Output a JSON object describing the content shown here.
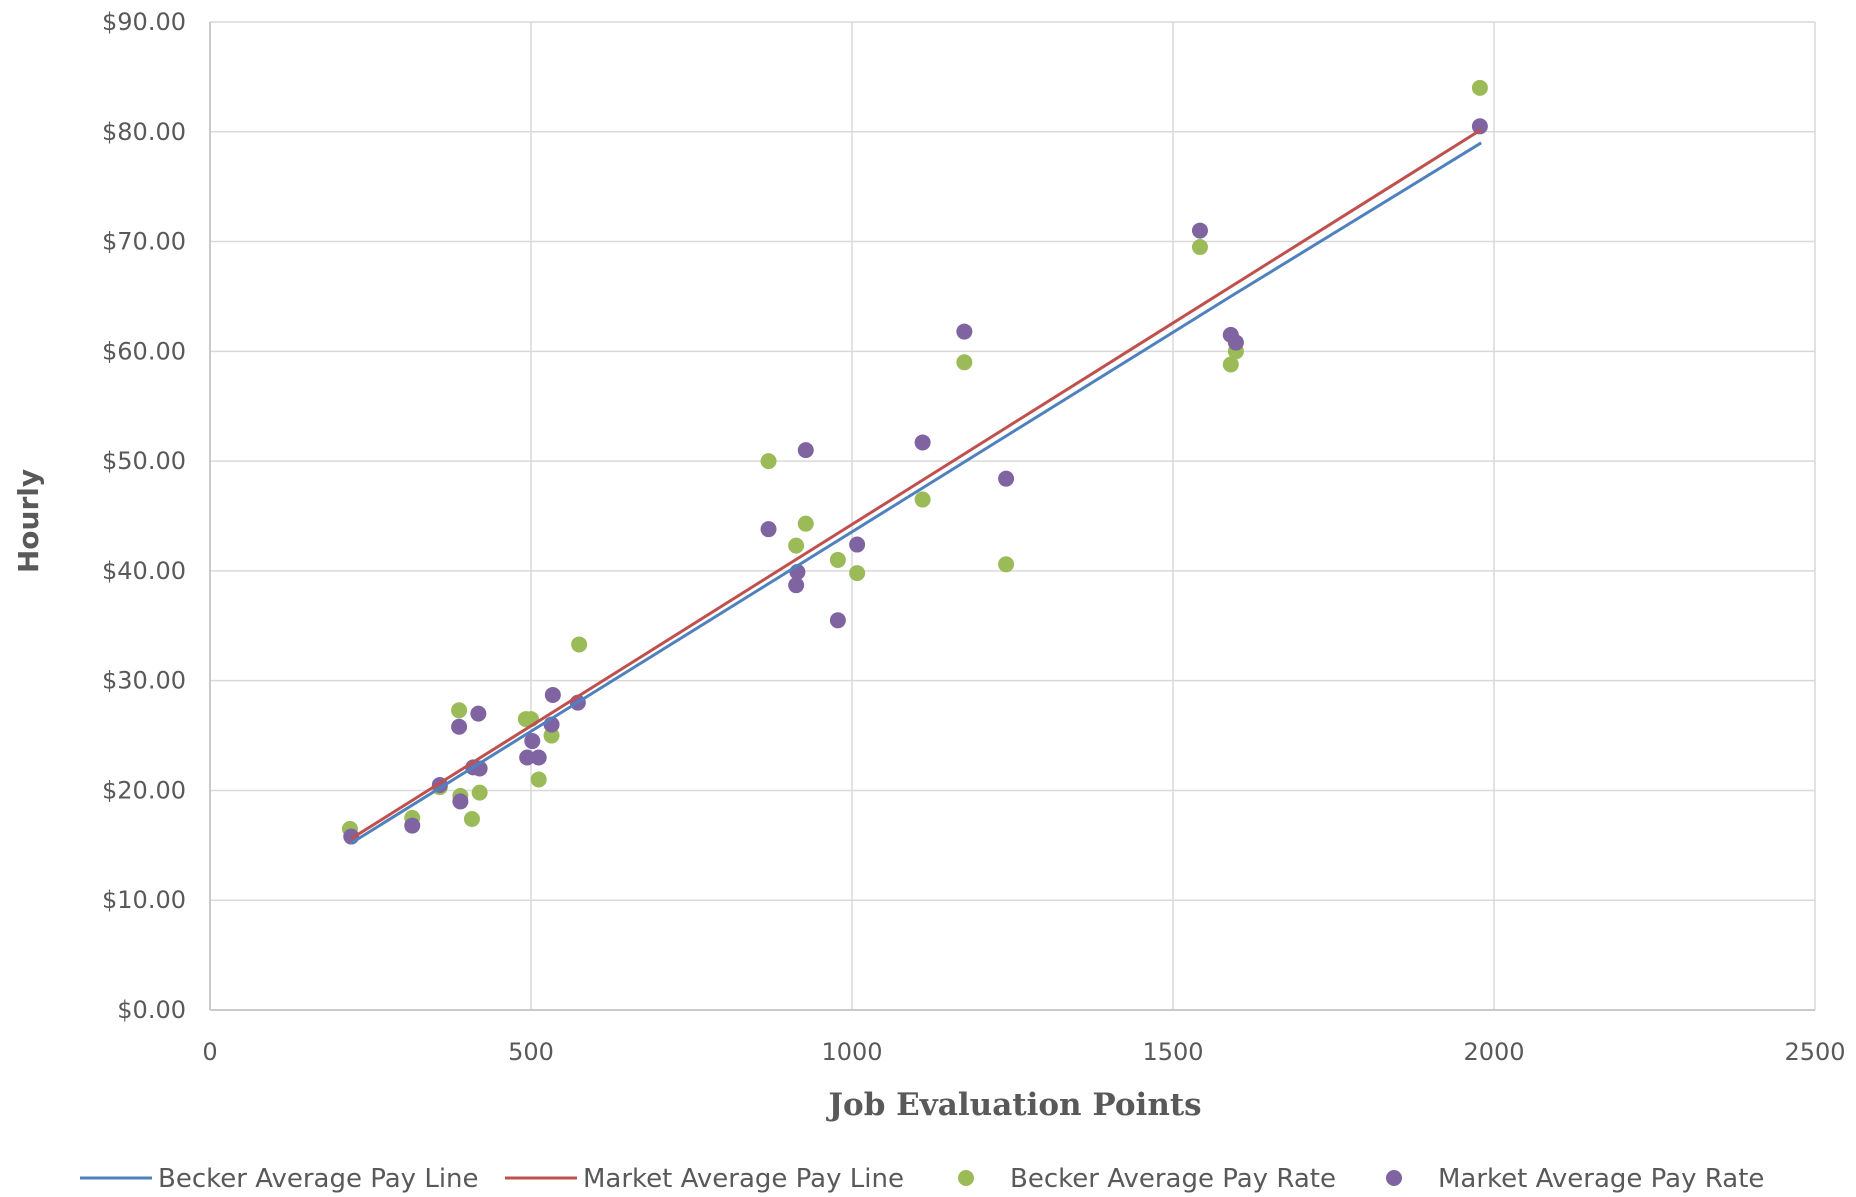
{
  "chart_data": {
    "type": "scatter",
    "xlabel": "Job Evaluation Points",
    "ylabel": "Hourly",
    "xlim": [
      0,
      2500
    ],
    "ylim": [
      0,
      90
    ],
    "x_ticks": [
      0,
      500,
      1000,
      1500,
      2000,
      2500
    ],
    "y_ticks": [
      0,
      10,
      20,
      30,
      40,
      50,
      60,
      70,
      80,
      90
    ],
    "x_tick_labels": [
      "0",
      "500",
      "1000",
      "1500",
      "2000",
      "2500"
    ],
    "y_tick_labels": [
      "$0.00",
      "$10.00",
      "$20.00",
      "$30.00",
      "$40.00",
      "$50.00",
      "$60.00",
      "$70.00",
      "$80.00",
      "$90.00"
    ],
    "grid": true,
    "legend_position": "bottom",
    "series": [
      {
        "name": "Becker Average Pay Line",
        "kind": "line",
        "color": "#4e81bd",
        "x": [
          220,
          1590,
          1980
        ],
        "y": [
          15.2,
          65.0,
          79.0
        ]
      },
      {
        "name": "Market Average Pay Line",
        "kind": "line",
        "color": "#c0504d",
        "x": [
          220,
          1980
        ],
        "y": [
          15.6,
          80.2
        ]
      },
      {
        "name": "Becker Average Pay Rate",
        "kind": "scatter",
        "color": "#9bbb59",
        "points": [
          [
            218,
            16.5
          ],
          [
            315,
            17.5
          ],
          [
            358,
            20.3
          ],
          [
            388,
            27.3
          ],
          [
            390,
            19.5
          ],
          [
            408,
            17.4
          ],
          [
            420,
            19.8
          ],
          [
            492,
            26.5
          ],
          [
            500,
            26.5
          ],
          [
            512,
            21.0
          ],
          [
            532,
            25.0
          ],
          [
            575,
            33.3
          ],
          [
            870,
            50.0
          ],
          [
            913,
            42.3
          ],
          [
            928,
            44.3
          ],
          [
            978,
            41.0
          ],
          [
            1008,
            39.8
          ],
          [
            1110,
            46.5
          ],
          [
            1175,
            59.0
          ],
          [
            1240,
            40.6
          ],
          [
            1542,
            69.5
          ],
          [
            1590,
            58.8
          ],
          [
            1598,
            60.0
          ],
          [
            1978,
            84.0
          ]
        ]
      },
      {
        "name": "Market Average Pay Rate",
        "kind": "scatter",
        "color": "#8064a2",
        "points": [
          [
            220,
            15.8
          ],
          [
            315,
            16.8
          ],
          [
            358,
            20.5
          ],
          [
            388,
            25.8
          ],
          [
            390,
            19.0
          ],
          [
            410,
            22.1
          ],
          [
            418,
            27.0
          ],
          [
            420,
            22.0
          ],
          [
            494,
            23.0
          ],
          [
            502,
            24.5
          ],
          [
            512,
            23.0
          ],
          [
            532,
            26.0
          ],
          [
            534,
            28.7
          ],
          [
            573,
            28.0
          ],
          [
            870,
            43.8
          ],
          [
            913,
            38.7
          ],
          [
            915,
            39.9
          ],
          [
            928,
            51.0
          ],
          [
            978,
            35.5
          ],
          [
            1008,
            42.4
          ],
          [
            1110,
            51.7
          ],
          [
            1175,
            61.8
          ],
          [
            1240,
            48.4
          ],
          [
            1542,
            71.0
          ],
          [
            1590,
            61.5
          ],
          [
            1598,
            60.8
          ],
          [
            1978,
            80.5
          ]
        ]
      }
    ]
  }
}
